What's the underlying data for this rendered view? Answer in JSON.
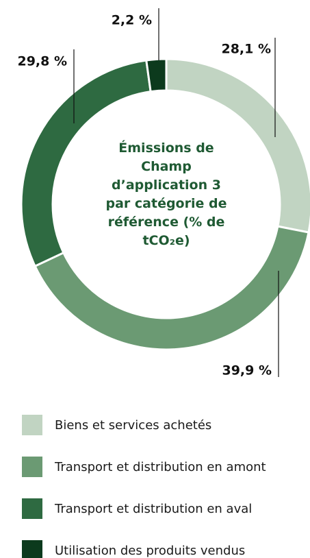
{
  "chart_data": {
    "type": "donut",
    "title": "Émissions de Champ d’application 3 par catégorie de référence (% de tCO₂e)",
    "categories": [
      "Biens et services achetés",
      "Transport et distribution en amont",
      "Transport et distribution en aval",
      "Utilisation des produits vendus"
    ],
    "values": [
      28.1,
      39.9,
      29.8,
      2.2
    ],
    "value_labels": [
      "28,1 %",
      "39,9 %",
      "29,8 %",
      "2,2 %"
    ],
    "colors": [
      "#c1d4c2",
      "#6b9a73",
      "#2e6a41",
      "#0c3a1d"
    ]
  }
}
